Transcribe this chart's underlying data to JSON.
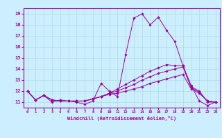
{
  "xlabel": "Windchill (Refroidissement éolien,°C)",
  "background_color": "#cceeff",
  "grid_color": "#aadddd",
  "line_color": "#990099",
  "xlim": [
    -0.5,
    23.5
  ],
  "ylim": [
    10.5,
    19.5
  ],
  "xticks": [
    0,
    1,
    2,
    3,
    4,
    5,
    6,
    7,
    8,
    9,
    10,
    11,
    12,
    13,
    14,
    15,
    16,
    17,
    18,
    19,
    20,
    21,
    22,
    23
  ],
  "yticks": [
    11,
    12,
    13,
    14,
    15,
    16,
    17,
    18,
    19
  ],
  "series": [
    [
      12.0,
      11.2,
      11.6,
      11.0,
      11.2,
      11.1,
      11.0,
      10.8,
      11.1,
      12.7,
      12.0,
      11.5,
      15.3,
      18.6,
      19.0,
      18.0,
      18.7,
      17.5,
      16.5,
      14.3,
      12.5,
      11.1,
      10.7,
      11.0
    ],
    [
      12.0,
      11.2,
      11.6,
      11.2,
      11.1,
      11.1,
      11.1,
      11.1,
      11.3,
      11.5,
      11.8,
      12.2,
      12.6,
      13.0,
      13.4,
      13.8,
      14.1,
      14.4,
      14.3,
      14.3,
      12.4,
      12.0,
      11.0,
      11.0
    ],
    [
      12.0,
      11.2,
      11.6,
      11.2,
      11.1,
      11.1,
      11.1,
      11.1,
      11.3,
      11.5,
      11.8,
      12.0,
      12.3,
      12.6,
      13.0,
      13.3,
      13.6,
      13.8,
      14.0,
      14.2,
      12.3,
      11.9,
      11.1,
      11.0
    ],
    [
      12.0,
      11.2,
      11.6,
      11.2,
      11.1,
      11.1,
      11.1,
      11.1,
      11.3,
      11.5,
      11.7,
      11.8,
      12.0,
      12.2,
      12.4,
      12.7,
      12.9,
      13.1,
      13.3,
      13.5,
      12.2,
      11.8,
      11.1,
      11.0
    ]
  ]
}
